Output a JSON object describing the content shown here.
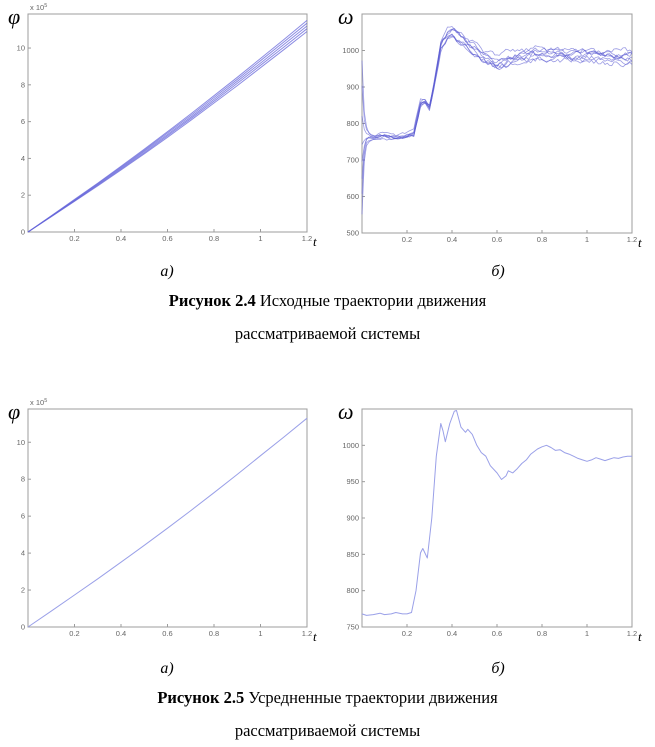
{
  "page": {
    "background": "#ffffff",
    "axis_color": "#9c9c9c",
    "tick_label_color": "#666666"
  },
  "figures": [
    {
      "sublabel_left": "а)",
      "sublabel_right": "б)",
      "caption_bold": "Рисунок 2.4",
      "caption_rest": " Исходные траектории движения",
      "caption_line2": "рассматриваемой системы"
    },
    {
      "sublabel_left": "а)",
      "sublabel_right": "б)",
      "caption_bold": "Рисунок 2.5",
      "caption_rest": " Усредненные траектории движения",
      "caption_line2": "рассматриваемой системы"
    }
  ],
  "chart_data": [
    {
      "id": "fig24a",
      "type": "line",
      "title": "Исходные траектории φ(t)",
      "xlabel": "t",
      "ylabel": "φ",
      "scale_base": "x 10",
      "scale_exp": "5",
      "xlim": [
        0,
        1.2
      ],
      "ylim": [
        0,
        11.85
      ],
      "xticks": [
        0.2,
        0.4,
        0.6,
        0.8,
        1,
        1.2
      ],
      "xtick_labels": [
        "0.2",
        "0.4",
        "0.6",
        "0.8",
        "1",
        "1.2"
      ],
      "yticks": [
        0,
        2,
        4,
        6,
        8,
        10
      ],
      "ytick_labels": [
        "0",
        "2",
        "4",
        "6",
        "8",
        "10"
      ],
      "grid": false,
      "legend": "none",
      "line_color": "#6565da",
      "line_width": 1,
      "opacity": 0.75,
      "x": [
        0,
        0.1,
        0.2,
        0.3,
        0.4,
        0.5,
        0.6,
        0.7,
        0.8,
        0.9,
        1.0,
        1.1,
        1.2
      ],
      "series": [
        {
          "name": "trajectory-1",
          "values": [
            0,
            0.83,
            1.67,
            2.51,
            3.37,
            4.25,
            5.15,
            6.07,
            7.01,
            7.96,
            8.93,
            9.91,
            10.9
          ]
        },
        {
          "name": "trajectory-2",
          "values": [
            0,
            0.84,
            1.69,
            2.55,
            3.42,
            4.31,
            5.23,
            6.16,
            7.11,
            8.08,
            9.06,
            10.05,
            11.05
          ]
        },
        {
          "name": "trajectory-3",
          "values": [
            0,
            0.86,
            1.72,
            2.59,
            3.47,
            4.38,
            5.3,
            6.24,
            7.21,
            8.19,
            9.18,
            10.19,
            11.2
          ]
        },
        {
          "name": "trajectory-4",
          "values": [
            0,
            0.87,
            1.74,
            2.63,
            3.52,
            4.44,
            5.38,
            6.33,
            7.31,
            8.3,
            9.31,
            10.33,
            11.35
          ]
        },
        {
          "name": "trajectory-5",
          "values": [
            0,
            0.88,
            1.77,
            2.66,
            3.57,
            4.5,
            5.45,
            6.42,
            7.41,
            8.41,
            9.43,
            10.46,
            11.5
          ]
        }
      ]
    },
    {
      "id": "fig24b",
      "type": "line-ensemble",
      "title": "Исходные траектории ω(t)",
      "xlabel": "t",
      "ylabel": "ω",
      "xlim": [
        0,
        1.2
      ],
      "ylim": [
        500,
        1100
      ],
      "xticks": [
        0.2,
        0.4,
        0.6,
        0.8,
        1,
        1.2
      ],
      "xtick_labels": [
        "0.2",
        "0.4",
        "0.6",
        "0.8",
        "1",
        "1.2"
      ],
      "yticks": [
        500,
        600,
        700,
        800,
        900,
        1000
      ],
      "ytick_labels": [
        "500",
        "600",
        "700",
        "800",
        "900",
        "1000"
      ],
      "grid": false,
      "legend": "none",
      "line_color": "#5a5ad2",
      "line_width": 0.8,
      "opacity": 0.6,
      "base": {
        "t": [
          0,
          0.05,
          0.1,
          0.15,
          0.2,
          0.23,
          0.26,
          0.28,
          0.3,
          0.32,
          0.35,
          0.38,
          0.4,
          0.43,
          0.46,
          0.5,
          0.55,
          0.6,
          0.65,
          0.7,
          0.75,
          0.8,
          0.85,
          0.9,
          0.95,
          1.0,
          1.05,
          1.1,
          1.15,
          1.2
        ],
        "omega": [
          765,
          763,
          768,
          762,
          766,
          772,
          855,
          862,
          845,
          905,
          1010,
          1042,
          1050,
          1035,
          1020,
          1000,
          975,
          962,
          975,
          980,
          985,
          990,
          988,
          985,
          983,
          986,
          984,
          982,
          984,
          983
        ]
      },
      "ensemble": {
        "count": 8,
        "start_values": [
          555,
          610,
          650,
          700,
          745,
          820,
          900,
          965
        ],
        "band_offsets": [
          -16,
          -11,
          -6,
          -2,
          2,
          7,
          12,
          17
        ],
        "noise_seeds": [
          3,
          17,
          42,
          7,
          23,
          99,
          55,
          31
        ],
        "noise_amplitude": 7.5
      }
    },
    {
      "id": "fig25a",
      "type": "line",
      "title": "Усредненная траектория φ(t)",
      "xlabel": "t",
      "ylabel": "φ",
      "scale_base": "x 10",
      "scale_exp": "5",
      "xlim": [
        0,
        1.2
      ],
      "ylim": [
        0,
        11.8
      ],
      "xticks": [
        0.2,
        0.4,
        0.6,
        0.8,
        1,
        1.2
      ],
      "xtick_labels": [
        "0.2",
        "0.4",
        "0.6",
        "0.8",
        "1",
        "1.2"
      ],
      "yticks": [
        0,
        2,
        4,
        6,
        8,
        10
      ],
      "ytick_labels": [
        "0",
        "2",
        "4",
        "6",
        "8",
        "10"
      ],
      "grid": false,
      "legend": "none",
      "line_color": "#9aa0e8",
      "line_width": 1,
      "opacity": 1,
      "x": [
        0,
        0.1,
        0.2,
        0.3,
        0.4,
        0.5,
        0.6,
        0.7,
        0.8,
        0.9,
        1.0,
        1.1,
        1.2
      ],
      "series": [
        {
          "name": "averaged-phi",
          "values": [
            0,
            0.86,
            1.73,
            2.61,
            3.51,
            4.42,
            5.35,
            6.3,
            7.27,
            8.26,
            9.27,
            10.28,
            11.3
          ]
        }
      ]
    },
    {
      "id": "fig25b",
      "type": "line",
      "title": "Усредненная траектория ω(t)",
      "xlabel": "t",
      "ylabel": "ω",
      "xlim": [
        0,
        1.2
      ],
      "ylim": [
        750,
        1050
      ],
      "xticks": [
        0.2,
        0.4,
        0.6,
        0.8,
        1,
        1.2
      ],
      "xtick_labels": [
        "0.2",
        "0.4",
        "0.6",
        "0.8",
        "1",
        "1.2"
      ],
      "yticks": [
        750,
        800,
        850,
        900,
        950,
        1000
      ],
      "ytick_labels": [
        "750",
        "800",
        "850",
        "900",
        "950",
        "1000"
      ],
      "grid": false,
      "legend": "none",
      "line_color": "#9aa0e8",
      "line_width": 1,
      "opacity": 1,
      "series": [
        {
          "name": "averaged-omega",
          "x": [
            0,
            0.02,
            0.05,
            0.08,
            0.1,
            0.13,
            0.15,
            0.18,
            0.2,
            0.22,
            0.24,
            0.26,
            0.27,
            0.29,
            0.31,
            0.33,
            0.35,
            0.36,
            0.37,
            0.39,
            0.41,
            0.42,
            0.44,
            0.46,
            0.47,
            0.49,
            0.51,
            0.53,
            0.55,
            0.57,
            0.6,
            0.62,
            0.64,
            0.65,
            0.67,
            0.69,
            0.71,
            0.73,
            0.75,
            0.78,
            0.8,
            0.82,
            0.84,
            0.86,
            0.88,
            0.9,
            0.92,
            0.94,
            0.96,
            0.98,
            1.0,
            1.02,
            1.04,
            1.06,
            1.08,
            1.1,
            1.12,
            1.14,
            1.16,
            1.18,
            1.2
          ],
          "values": [
            768,
            766,
            767,
            769,
            767,
            768,
            770,
            768,
            768,
            770,
            800,
            852,
            858,
            845,
            900,
            985,
            1030,
            1020,
            1005,
            1030,
            1047,
            1048,
            1025,
            1018,
            1022,
            1015,
            1000,
            990,
            985,
            972,
            962,
            953,
            958,
            965,
            962,
            968,
            975,
            980,
            988,
            995,
            998,
            1000,
            997,
            993,
            994,
            990,
            988,
            985,
            982,
            980,
            978,
            980,
            983,
            981,
            979,
            981,
            983,
            982,
            984,
            985,
            985
          ]
        }
      ]
    }
  ]
}
